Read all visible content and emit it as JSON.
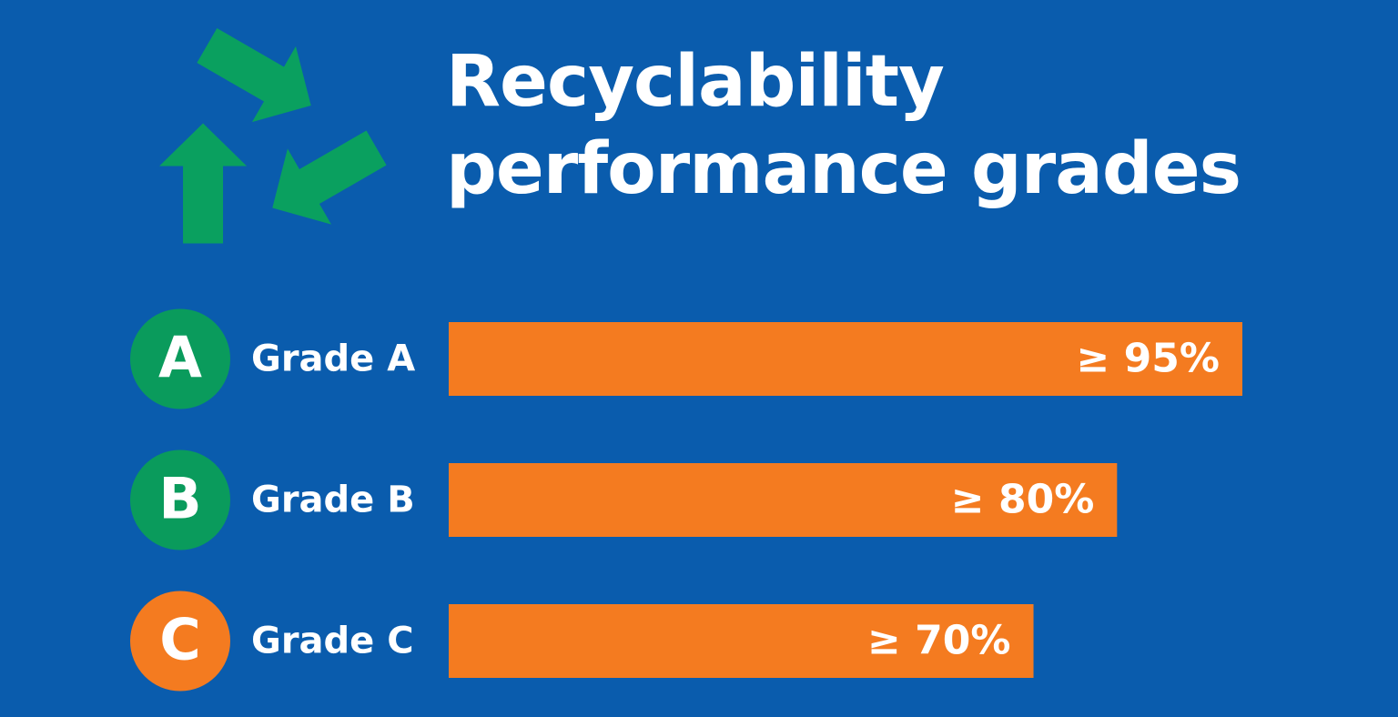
{
  "chart_data": {
    "type": "bar",
    "orientation": "horizontal",
    "title": "Recyclability performance grades",
    "categories": [
      "Grade A",
      "Grade B",
      "Grade C"
    ],
    "badges": [
      "A",
      "B",
      "C"
    ],
    "badge_colors": [
      "#0a9b5c",
      "#0a9b5c",
      "#f47b20"
    ],
    "values": [
      95,
      80,
      70
    ],
    "value_labels": [
      "≥ 95%",
      "≥ 80%",
      "≥ 70%"
    ],
    "color": "#f47b20"
  }
}
